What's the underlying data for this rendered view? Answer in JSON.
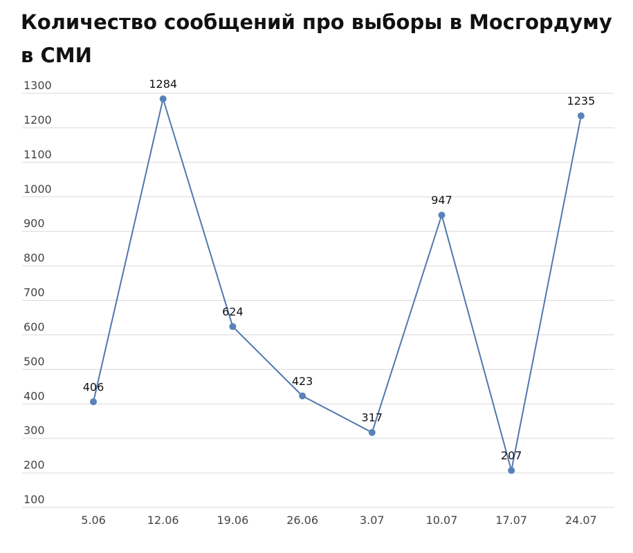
{
  "chart_data": {
    "type": "line",
    "title": "Количество сообщений про выборы в Мосгордуму в СМИ",
    "xlabel": "",
    "ylabel": "",
    "categories": [
      "5.06",
      "12.06",
      "19.06",
      "26.06",
      "3.07",
      "10.07",
      "17.07",
      "24.07"
    ],
    "series": [
      {
        "values": [
          406,
          1284,
          624,
          423,
          317,
          947,
          207,
          1235
        ]
      }
    ],
    "data_labels": [
      "406",
      "1284",
      "624",
      "423",
      "317",
      "947",
      "207",
      "1235"
    ],
    "ylim": [
      100,
      1300
    ],
    "yticks": [
      "100",
      "200",
      "300",
      "400",
      "500",
      "600",
      "700",
      "800",
      "900",
      "1000",
      "1100",
      "1200",
      "1300"
    ],
    "grid": true,
    "legend": "none",
    "colors": {
      "line": "#4f77ad",
      "marker": "#5a82b8",
      "grid": "#d9d9d9"
    }
  }
}
